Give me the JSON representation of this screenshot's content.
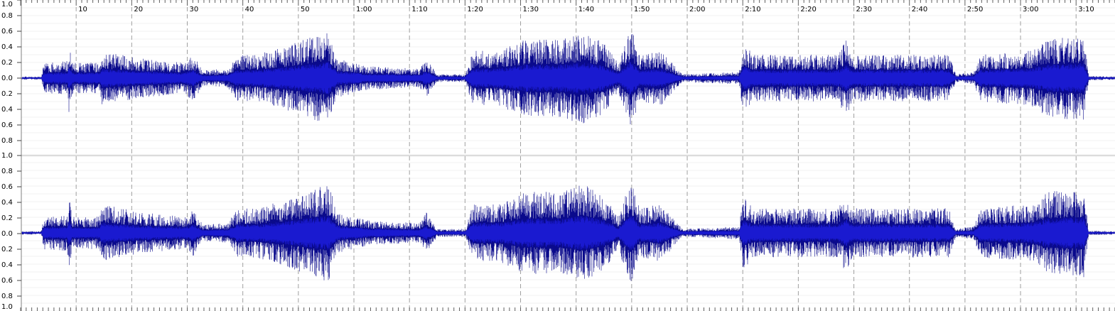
{
  "ruler": {
    "labels": [
      "10",
      "20",
      "30",
      "40",
      "50",
      "1:00",
      "1:10",
      "1:20",
      "1:30",
      "1:40",
      "1:50",
      "2:00",
      "2:10",
      "2:20",
      "2:30",
      "2:40",
      "2:50",
      "3:00",
      "3:10"
    ]
  },
  "channels": [
    {
      "scale": [
        "1.0",
        "0.8",
        "0.6",
        "0.4",
        "0.2",
        "0.0",
        "0.2",
        "0.4",
        "0.6",
        "0.8"
      ]
    },
    {
      "scale": [
        "1.0",
        "0.8",
        "0.6",
        "0.4",
        "0.2",
        "0.0",
        "0.2",
        "0.4",
        "0.6",
        "0.8",
        "1.0"
      ]
    }
  ]
}
